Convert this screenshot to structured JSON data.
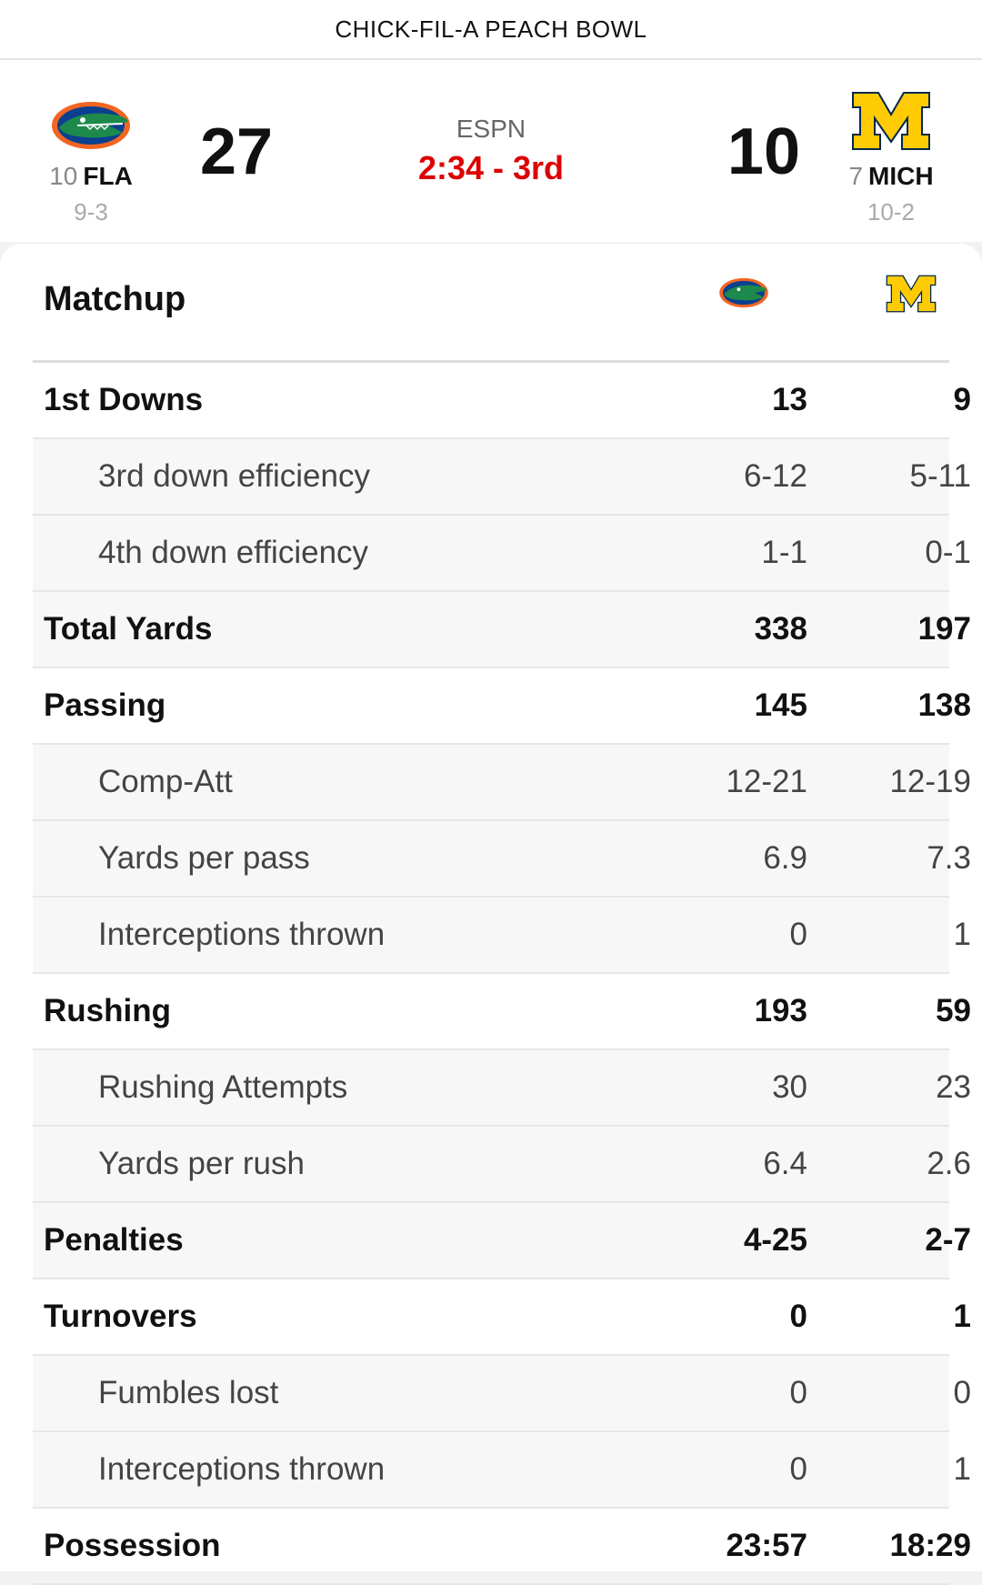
{
  "header": {
    "bowl_title": "CHICK-FIL-A PEACH BOWL"
  },
  "game": {
    "network": "ESPN",
    "clock": "2:34 - 3rd",
    "home": {
      "rank": "10",
      "abbr": "FLA",
      "record": "9-3",
      "score": "27",
      "logo": "gator-logo-icon"
    },
    "away": {
      "rank": "7",
      "abbr": "MICH",
      "record": "10-2",
      "score": "10",
      "logo": "block-m-logo-icon"
    }
  },
  "matchup": {
    "title": "Matchup",
    "rows": [
      {
        "label": "1st Downs",
        "fla": "13",
        "mich": "9",
        "type": "main"
      },
      {
        "label": "3rd down efficiency",
        "fla": "6-12",
        "mich": "5-11",
        "type": "sub"
      },
      {
        "label": "4th down efficiency",
        "fla": "1-1",
        "mich": "0-1",
        "type": "sub"
      },
      {
        "label": "Total Yards",
        "fla": "338",
        "mich": "197",
        "type": "main"
      },
      {
        "label": "Passing",
        "fla": "145",
        "mich": "138",
        "type": "main"
      },
      {
        "label": "Comp-Att",
        "fla": "12-21",
        "mich": "12-19",
        "type": "sub"
      },
      {
        "label": "Yards per pass",
        "fla": "6.9",
        "mich": "7.3",
        "type": "sub"
      },
      {
        "label": "Interceptions thrown",
        "fla": "0",
        "mich": "1",
        "type": "sub"
      },
      {
        "label": "Rushing",
        "fla": "193",
        "mich": "59",
        "type": "main"
      },
      {
        "label": "Rushing Attempts",
        "fla": "30",
        "mich": "23",
        "type": "sub"
      },
      {
        "label": "Yards per rush",
        "fla": "6.4",
        "mich": "2.6",
        "type": "sub"
      },
      {
        "label": "Penalties",
        "fla": "4-25",
        "mich": "2-7",
        "type": "main"
      },
      {
        "label": "Turnovers",
        "fla": "0",
        "mich": "1",
        "type": "main"
      },
      {
        "label": "Fumbles lost",
        "fla": "0",
        "mich": "0",
        "type": "sub"
      },
      {
        "label": "Interceptions thrown",
        "fla": "0",
        "mich": "1",
        "type": "sub"
      },
      {
        "label": "Possession",
        "fla": "23:57",
        "mich": "18:29",
        "type": "main"
      }
    ]
  },
  "colors": {
    "live_clock": "#dd0000",
    "fla_orange": "#f26522",
    "fla_blue": "#0b3f8f",
    "gator_green": "#1d8a4c",
    "mich_maize": "#ffcb05",
    "mich_blue": "#00274c"
  }
}
